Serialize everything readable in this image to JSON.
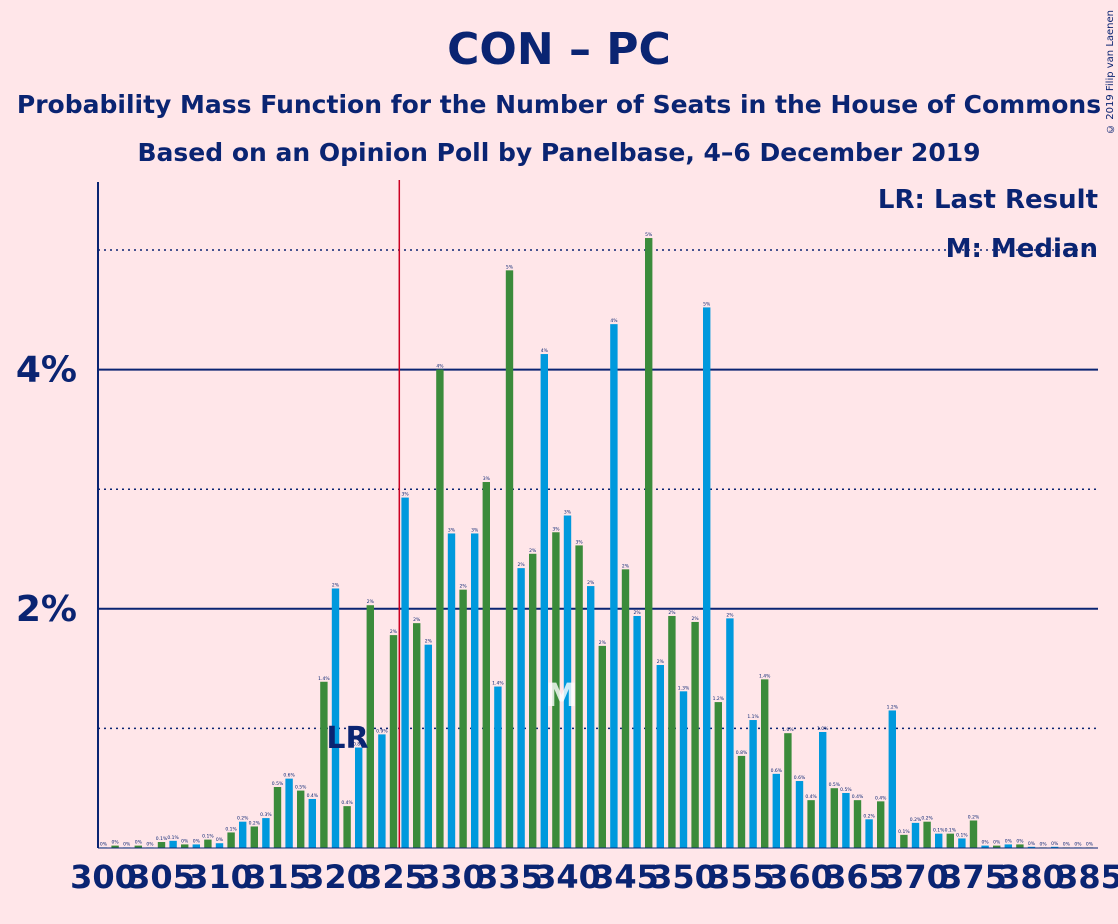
{
  "title": "CON – PC",
  "subtitle1": "Probability Mass Function for the Number of Seats in the House of Commons",
  "subtitle2": "Based on an Opinion Poll by Panelbase, 4–6 December 2019",
  "copyright": "© 2019 Filip van Laenen",
  "legend": {
    "lr": "LR: Last Result",
    "m": "M: Median"
  },
  "colors": {
    "background": "#FFE6E9",
    "text": "#0A2472",
    "blue": "#0099DD",
    "green": "#3B8B3B",
    "threshold": "#CC0022"
  },
  "chart_data": {
    "type": "bar",
    "x": [
      300,
      301,
      302,
      303,
      304,
      305,
      306,
      307,
      308,
      309,
      310,
      311,
      312,
      313,
      314,
      315,
      316,
      317,
      318,
      319,
      320,
      321,
      322,
      323,
      324,
      325,
      326,
      327,
      328,
      329,
      330,
      331,
      332,
      333,
      334,
      335,
      336,
      337,
      338,
      339,
      340,
      341,
      342,
      343,
      344,
      345,
      346,
      347,
      348,
      349,
      350,
      351,
      352,
      353,
      354,
      355,
      356,
      357,
      358,
      359,
      360,
      361,
      362,
      363,
      364,
      365,
      366,
      367,
      368,
      369,
      370,
      371,
      372,
      373,
      374,
      375,
      376,
      377,
      378,
      379,
      380,
      381,
      382,
      383,
      384,
      385
    ],
    "values": [
      0,
      0.02,
      0,
      0.02,
      0,
      0.05,
      0.06,
      0.03,
      0.03,
      0.07,
      0.04,
      0.13,
      0.22,
      0.18,
      0.25,
      0.51,
      0.58,
      0.48,
      0.41,
      1.39,
      2.17,
      0.35,
      0.84,
      2.03,
      0.95,
      1.78,
      2.93,
      1.88,
      1.7,
      4.0,
      2.63,
      2.16,
      2.63,
      3.06,
      1.35,
      4.83,
      2.34,
      2.46,
      4.13,
      2.64,
      2.78,
      2.53,
      2.19,
      1.69,
      4.38,
      2.33,
      1.94,
      5.1,
      1.53,
      1.94,
      1.31,
      1.89,
      4.52,
      1.22,
      1.92,
      0.77,
      1.07,
      1.41,
      0.62,
      0.96,
      0.56,
      0.4,
      0.97,
      0.5,
      0.46,
      0.4,
      0.24,
      0.39,
      1.15,
      0.11,
      0.21,
      0.22,
      0.12,
      0.12,
      0.08,
      0.23,
      0.02,
      0.02,
      0.03,
      0.03,
      0.01,
      0,
      0.01,
      0,
      0,
      0
    ],
    "labels": [
      "0%",
      "0%",
      "0%",
      "0%",
      "0%",
      "0.1%",
      "0.1%",
      "0%",
      "0%",
      "0.1%",
      "0%",
      "0.1%",
      "0.2%",
      "0.2%",
      "0.3%",
      "0.5%",
      "0.6%",
      "0.5%",
      "0.4%",
      "1.4%",
      "2%",
      "0.4%",
      "0.8%",
      "2%",
      "0.9%",
      "2%",
      "3%",
      "2%",
      "2%",
      "4%",
      "3%",
      "2%",
      "3%",
      "3%",
      "1.4%",
      "5%",
      "2%",
      "2%",
      "4%",
      "3%",
      "3%",
      "3%",
      "2%",
      "2%",
      "4%",
      "2%",
      "2%",
      "5%",
      "2%",
      "2%",
      "1.3%",
      "2%",
      "5%",
      "1.2%",
      "2%",
      "0.8%",
      "1.1%",
      "1.4%",
      "0.6%",
      "1.0%",
      "0.6%",
      "0.4%",
      "1.0%",
      "0.5%",
      "0.5%",
      "0.4%",
      "0.2%",
      "0.4%",
      "1.2%",
      "0.1%",
      "0.2%",
      "0.2%",
      "0.1%",
      "0.1%",
      "0.1%",
      "0.2%",
      "0%",
      "0%",
      "0%",
      "0%",
      "0%",
      "0%",
      "0%",
      "0%",
      "0%",
      "0%"
    ],
    "x_tick_labels": [
      "300",
      "305",
      "310",
      "315",
      "320",
      "325",
      "330",
      "335",
      "340",
      "345",
      "350",
      "355",
      "360",
      "365",
      "370",
      "375",
      "380",
      "385"
    ],
    "y_tick_labels": [
      "2%",
      "4%"
    ],
    "ylim": [
      0,
      5.55
    ],
    "last_result": 320,
    "last_result_label": "LR",
    "median": 340,
    "median_label": "M",
    "majority_line": 325.5,
    "grid": "dotted at 1% steps, solid at 2% and 4%"
  }
}
